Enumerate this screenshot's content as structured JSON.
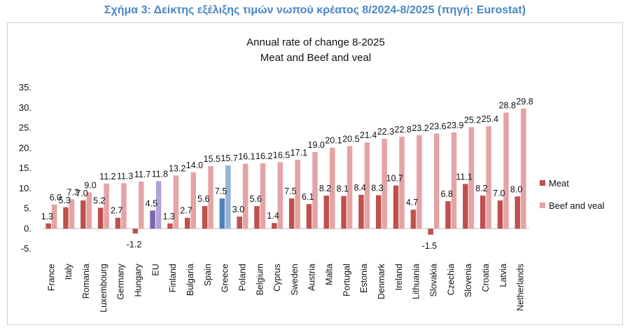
{
  "caption": "Σχήμα 3: Δείκτης εξέλιξης τιμών νωπού κρέατος 8/2024-8/2025 (πηγή: Eurostat)",
  "chart_data": {
    "type": "bar",
    "title": "Annual rate of change 8-2025",
    "subtitle": "Meat and Beef and veal",
    "xlabel": "",
    "ylabel": "",
    "ylim": [
      -5,
      35
    ],
    "yticks": [
      "35.",
      "30.",
      "25.",
      "20.",
      "15.",
      "10.",
      "5.",
      "0.",
      "-5."
    ],
    "yticks_values": [
      35,
      30,
      25,
      20,
      15,
      10,
      5,
      0,
      -5
    ],
    "grid": false,
    "legend_position": "right",
    "categories": [
      "France",
      "Italy",
      "Romania",
      "Luxembourg",
      "Germany",
      "Hungary",
      "EU",
      "Finland",
      "Bulgaria",
      "Spain",
      "Greece",
      "Poland",
      "Belgium",
      "Cyprus",
      "Sweden",
      "Austria",
      "Malta",
      "Portugal",
      "Estonia",
      "Denmark",
      "Ireland",
      "Lithuania",
      "Slovakia",
      "Czechia",
      "Slovenia",
      "Croatia",
      "Latvia",
      "Netherlands"
    ],
    "series": [
      {
        "name": "Meat",
        "color": "#c0504d",
        "values": [
          1.3,
          5.3,
          7.0,
          5.2,
          2.7,
          -1.2,
          4.5,
          1.3,
          2.7,
          5.6,
          7.5,
          3.0,
          5.6,
          1.4,
          7.5,
          6.1,
          8.2,
          8.1,
          8.4,
          8.3,
          10.7,
          4.7,
          -1.5,
          6.8,
          11.1,
          8.2,
          7.0,
          8.0
        ],
        "labels": [
          "1.3",
          "5.3",
          "7.0",
          "5.2",
          "2.7",
          "-1.2",
          "4.5",
          "1.3",
          "2.7",
          "5.6",
          "7.5",
          "3.0",
          "5.6",
          "1.4",
          "7.5",
          "6.1",
          "8.2",
          "8.1",
          "8.4",
          "8.3",
          "10.7",
          "4.7",
          "-1.5",
          "6.8",
          "11.1",
          "8.2",
          "7.0",
          "8.0"
        ]
      },
      {
        "name": "Beef and veal",
        "color": "#e6a3a3",
        "values": [
          6.0,
          7.3,
          9.0,
          11.2,
          11.3,
          11.7,
          11.8,
          13.2,
          14.0,
          15.5,
          15.7,
          16.1,
          16.2,
          16.5,
          17.1,
          19.0,
          20.1,
          20.5,
          21.4,
          22.3,
          22.8,
          23.2,
          23.6,
          23.9,
          25.2,
          25.4,
          28.8,
          29.8
        ],
        "labels": [
          "6.0",
          "7.3",
          "9.0",
          "11.2",
          "11.3",
          "11.7",
          "11.8",
          "13.2",
          "14.0",
          "15.5",
          "15.7",
          "16.1",
          "16.2",
          "16.5",
          "17.1",
          "19.0",
          "20.1",
          "20.5",
          "21.4",
          "22.3",
          "22.8",
          "23.2",
          "23.6",
          "23.9",
          "25.2",
          "25.4",
          "28.8",
          "29.8"
        ]
      }
    ],
    "highlight_colors": {
      "EU": {
        "Meat": "#7f64b2",
        "Beef and veal": "#b3a2d8"
      },
      "Greece": {
        "Meat": "#4f81bd",
        "Beef and veal": "#95b3d7"
      }
    }
  }
}
